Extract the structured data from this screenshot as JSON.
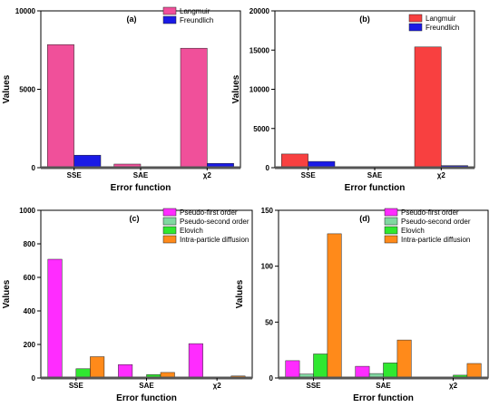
{
  "chart_data": [
    {
      "type": "bar",
      "panel_label": "(a)",
      "categories": [
        "SSE",
        "SAE",
        "χ2"
      ],
      "series": [
        {
          "name": "Langmuir",
          "values": [
            7850,
            230,
            7620
          ]
        },
        {
          "name": "Freundlich",
          "values": [
            800,
            60,
            280
          ]
        }
      ],
      "ylim": [
        0,
        10000
      ],
      "yticks": [
        "0",
        "5000",
        "10000"
      ],
      "xlabel": "Error function",
      "ylabel": "Values",
      "legend": "top-right",
      "colors": [
        "#f0509a",
        "#1a1ae6"
      ]
    },
    {
      "type": "bar",
      "panel_label": "(b)",
      "categories": [
        "SSE",
        "SAE",
        "χ2"
      ],
      "series": [
        {
          "name": "Langmuir",
          "values": [
            1750,
            80,
            15400
          ]
        },
        {
          "name": "Freundlich",
          "values": [
            800,
            40,
            270
          ]
        }
      ],
      "ylim": [
        0,
        20000
      ],
      "yticks": [
        "0",
        "5000",
        "10000",
        "15000",
        "20000"
      ],
      "xlabel": "Error function",
      "ylabel": "Values",
      "legend": "top-right",
      "colors": [
        "#f84040",
        "#1a1ae6"
      ]
    },
    {
      "type": "bar",
      "panel_label": "(c)",
      "categories": [
        "SSE",
        "SAE",
        "χ2"
      ],
      "series": [
        {
          "name": "Pseudo-first order",
          "values": [
            708,
            80,
            205
          ]
        },
        {
          "name": "Pseudo-second order",
          "values": [
            2,
            2,
            1
          ]
        },
        {
          "name": "Elovich",
          "values": [
            55,
            20,
            3
          ]
        },
        {
          "name": "Intra-particle diffusion",
          "values": [
            127,
            33,
            12
          ]
        }
      ],
      "ylim": [
        0,
        1000
      ],
      "yticks": [
        "0",
        "200",
        "400",
        "600",
        "800",
        "1000"
      ],
      "xlabel": "Error function",
      "ylabel": "Values",
      "legend": "top-right",
      "colors": [
        "#ff2cff",
        "#80d8a0",
        "#30e830",
        "#ff8a1a"
      ]
    },
    {
      "type": "bar",
      "panel_label": "(d)",
      "categories": [
        "SSE",
        "SAE",
        "χ2"
      ],
      "series": [
        {
          "name": "Pseudo-first order",
          "values": [
            15.5,
            10.5,
            1
          ]
        },
        {
          "name": "Pseudo-second order",
          "values": [
            3.5,
            4,
            0.3
          ]
        },
        {
          "name": "Elovich",
          "values": [
            21.5,
            13.5,
            2.5
          ]
        },
        {
          "name": "Intra-particle diffusion",
          "values": [
            129,
            34,
            13
          ]
        }
      ],
      "ylim": [
        0,
        150
      ],
      "yticks": [
        "0",
        "50",
        "100",
        "150"
      ],
      "xlabel": "Error function",
      "ylabel": "Values",
      "legend": "top-right",
      "colors": [
        "#ff2cff",
        "#80d8a0",
        "#30e830",
        "#ff8a1a"
      ]
    }
  ]
}
